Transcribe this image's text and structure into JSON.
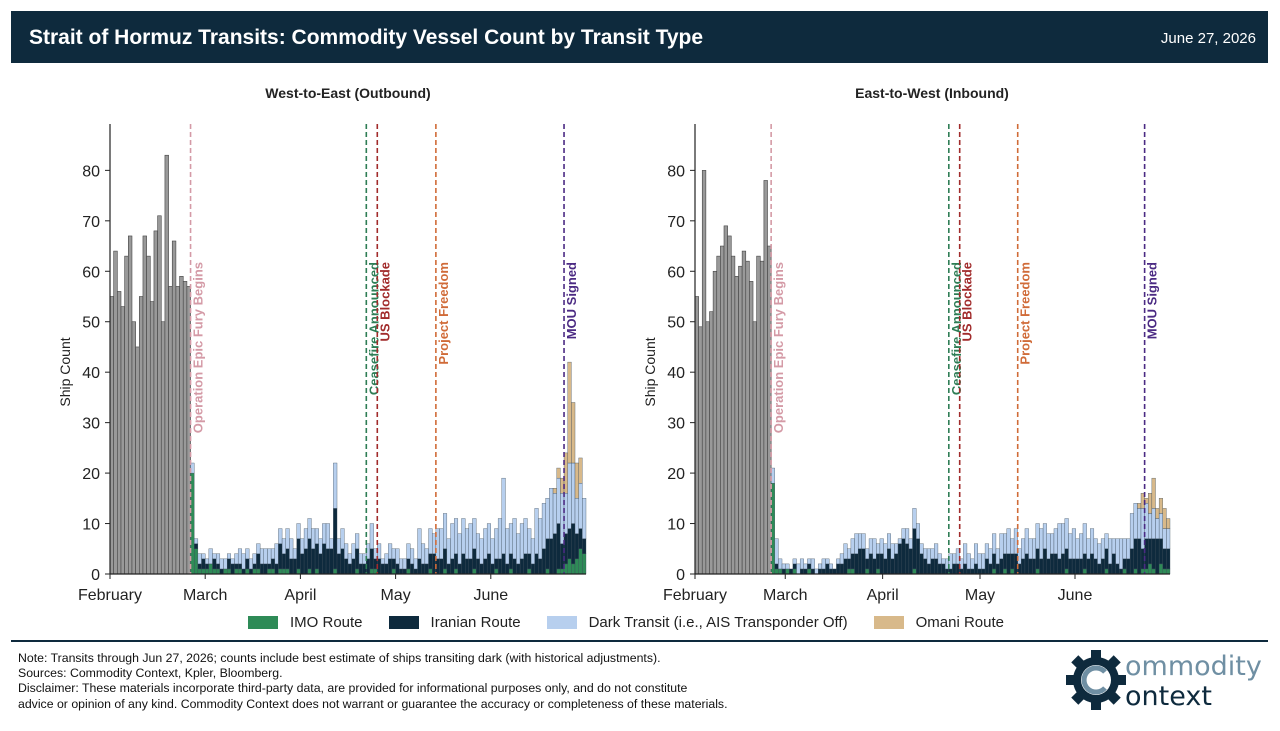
{
  "header": {
    "title": "Strait of Hormuz Transits: Commodity Vessel Count by Transit Type",
    "date": "June 27, 2026"
  },
  "legend": [
    {
      "label": "IMO Route",
      "color": "#2e8b57"
    },
    {
      "label": "Iranian Route",
      "color": "#0e2a3d"
    },
    {
      "label": "Dark Transit (i.e., AIS Transponder Off)",
      "color": "#b7cfee"
    },
    {
      "label": "Omani Route",
      "color": "#d8b98a"
    }
  ],
  "footer": {
    "note": "Note: Transits through Jun 27, 2026; counts include best estimate of ships transiting dark (with historical adjustments).",
    "sources": "Sources: Commodity Context, Kpler, Bloomberg.",
    "disclaimer1": "Disclaimer: These materials incorporate third-party data, are provided for informational purposes only, and do not constitute",
    "disclaimer2": "advice or opinion of any kind. Commodity Context does not warrant or guarantee the accuracy or completeness of these materials."
  },
  "logo": {
    "word1": "ommodity",
    "word2": "ontext"
  },
  "chart_data": [
    {
      "type": "bar",
      "title": "West-to-East (Outbound)",
      "ylabel": "Ship Count",
      "ylim": [
        0,
        88
      ],
      "yticks": [
        0,
        10,
        20,
        30,
        40,
        50,
        60,
        70,
        80
      ],
      "x_month_labels": [
        "February",
        "March",
        "April",
        "May",
        "June"
      ],
      "stacked": true,
      "pre_conflict_color": "#999999",
      "pre_conflict_daily": [
        55,
        64,
        56,
        53,
        63,
        67,
        50,
        45,
        55,
        67,
        63,
        54,
        68,
        71,
        50,
        83,
        57,
        66,
        57,
        59,
        58,
        57
      ],
      "conflict_series": {
        "imo": [
          20,
          5,
          1,
          1,
          1,
          2,
          1,
          1,
          0,
          1,
          1,
          0,
          1,
          1,
          0,
          1,
          0,
          1,
          1,
          0,
          0,
          1,
          1,
          0,
          1,
          1,
          1,
          0,
          0,
          1,
          0,
          0,
          1,
          0,
          1,
          0,
          0,
          0,
          0,
          1,
          0,
          0,
          0,
          0,
          0,
          1,
          0,
          0,
          0,
          1,
          1,
          0,
          0,
          0,
          0,
          1,
          0,
          0,
          0,
          1,
          0,
          0,
          0,
          0,
          0,
          1,
          0,
          0,
          0,
          1,
          0,
          0,
          1,
          0,
          0,
          0,
          0,
          1,
          0,
          0,
          0,
          0,
          0,
          1,
          0,
          0,
          0,
          1,
          0,
          0,
          0,
          0,
          1,
          0,
          0,
          0,
          0,
          1,
          0,
          0,
          1,
          1,
          2,
          3,
          2,
          3,
          5,
          4
        ],
        "iranian": [
          0,
          1,
          1,
          2,
          1,
          0,
          2,
          1,
          1,
          0,
          2,
          2,
          1,
          1,
          1,
          2,
          1,
          1,
          3,
          2,
          2,
          1,
          2,
          2,
          5,
          3,
          4,
          3,
          3,
          6,
          4,
          5,
          6,
          5,
          5,
          4,
          6,
          5,
          5,
          12,
          4,
          5,
          3,
          2,
          3,
          4,
          2,
          2,
          3,
          4,
          2,
          3,
          2,
          2,
          3,
          2,
          2,
          1,
          1,
          2,
          2,
          1,
          3,
          2,
          2,
          3,
          4,
          3,
          3,
          4,
          2,
          3,
          3,
          2,
          4,
          3,
          3,
          4,
          3,
          2,
          3,
          4,
          2,
          2,
          3,
          4,
          2,
          3,
          3,
          2,
          3,
          4,
          3,
          2,
          4,
          3,
          5,
          6,
          7,
          8,
          9,
          5,
          6,
          6,
          8,
          5,
          4,
          3
        ],
        "dark": [
          2,
          1,
          2,
          1,
          1,
          3,
          1,
          2,
          2,
          2,
          1,
          1,
          2,
          3,
          3,
          2,
          2,
          2,
          2,
          3,
          3,
          3,
          2,
          4,
          3,
          3,
          4,
          4,
          2,
          3,
          3,
          4,
          4,
          4,
          3,
          3,
          4,
          5,
          2,
          9,
          3,
          4,
          3,
          2,
          3,
          3,
          2,
          2,
          3,
          5,
          2,
          3,
          1,
          2,
          3,
          2,
          3,
          2,
          2,
          3,
          3,
          2,
          6,
          4,
          3,
          5,
          4,
          6,
          6,
          7,
          5,
          7,
          7,
          6,
          7,
          6,
          7,
          6,
          5,
          5,
          6,
          6,
          5,
          6,
          8,
          15,
          7,
          6,
          8,
          6,
          7,
          7,
          5,
          5,
          9,
          8,
          9,
          8,
          10,
          8,
          9,
          10,
          8,
          13,
          12,
          7,
          9,
          8
        ],
        "omani": [
          0,
          0,
          0,
          0,
          0,
          0,
          0,
          0,
          0,
          0,
          0,
          0,
          0,
          0,
          0,
          0,
          0,
          0,
          0,
          0,
          0,
          0,
          0,
          0,
          0,
          0,
          0,
          0,
          0,
          0,
          0,
          0,
          0,
          0,
          0,
          0,
          0,
          0,
          0,
          0,
          0,
          0,
          0,
          0,
          0,
          0,
          0,
          0,
          0,
          0,
          0,
          0,
          0,
          0,
          0,
          0,
          0,
          0,
          0,
          0,
          0,
          0,
          0,
          0,
          0,
          0,
          0,
          0,
          0,
          0,
          0,
          0,
          0,
          0,
          0,
          0,
          0,
          0,
          0,
          0,
          0,
          0,
          0,
          0,
          0,
          0,
          0,
          0,
          0,
          0,
          0,
          0,
          0,
          0,
          0,
          0,
          0,
          0,
          0,
          1,
          2,
          3,
          8,
          20,
          12,
          7,
          5,
          0
        ]
      },
      "events": [
        {
          "label": "Operation Epic Fury Begins",
          "color": "#d49aa6",
          "index": 22
        },
        {
          "label": "Ceasefire Announced",
          "color": "#2e7d55",
          "index": 70
        },
        {
          "label": "US Blockade",
          "color": "#a12b2b",
          "index": 73
        },
        {
          "label": "Project Freedom",
          "color": "#d06b38",
          "index": 89
        },
        {
          "label": "MOU Signed",
          "color": "#4b2a83",
          "index": 124
        }
      ]
    },
    {
      "type": "bar",
      "title": "East-to-West (Inbound)",
      "ylabel": "Ship Count",
      "ylim": [
        0,
        88
      ],
      "yticks": [
        0,
        10,
        20,
        30,
        40,
        50,
        60,
        70,
        80
      ],
      "x_month_labels": [
        "February",
        "March",
        "April",
        "May",
        "June"
      ],
      "stacked": true,
      "pre_conflict_color": "#999999",
      "pre_conflict_daily": [
        55,
        49,
        80,
        50,
        52,
        60,
        63,
        65,
        69,
        67,
        63,
        59,
        61,
        64,
        62,
        58,
        50,
        63,
        62,
        78,
        65
      ],
      "conflict_series": {
        "imo": [
          18,
          1,
          1,
          0,
          1,
          0,
          1,
          0,
          0,
          0,
          1,
          0,
          0,
          0,
          0,
          0,
          0,
          0,
          0,
          0,
          0,
          1,
          1,
          0,
          0,
          0,
          1,
          0,
          0,
          1,
          0,
          0,
          0,
          0,
          0,
          0,
          0,
          0,
          0,
          1,
          0,
          0,
          0,
          0,
          0,
          0,
          0,
          0,
          0,
          0,
          0,
          0,
          0,
          0,
          0,
          0,
          0,
          0,
          0,
          0,
          0,
          1,
          0,
          0,
          1,
          0,
          1,
          0,
          0,
          0,
          0,
          0,
          0,
          1,
          0,
          0,
          0,
          0,
          0,
          0,
          0,
          1,
          0,
          0,
          0,
          0,
          1,
          0,
          0,
          0,
          0,
          0,
          1,
          0,
          0,
          0,
          0,
          1,
          0,
          0,
          1,
          0,
          1,
          1,
          2,
          1,
          0,
          2,
          1,
          1
        ],
        "iranian": [
          0,
          1,
          0,
          1,
          0,
          1,
          1,
          0,
          1,
          1,
          1,
          1,
          0,
          1,
          1,
          2,
          1,
          1,
          2,
          2,
          3,
          2,
          3,
          4,
          5,
          5,
          2,
          4,
          3,
          3,
          4,
          3,
          5,
          3,
          4,
          6,
          7,
          6,
          5,
          8,
          7,
          4,
          3,
          2,
          3,
          3,
          2,
          2,
          1,
          1,
          2,
          2,
          1,
          2,
          1,
          1,
          2,
          1,
          1,
          3,
          2,
          3,
          2,
          3,
          3,
          4,
          3,
          4,
          2,
          3,
          4,
          3,
          3,
          4,
          3,
          5,
          3,
          4,
          4,
          3,
          4,
          4,
          3,
          3,
          3,
          3,
          3,
          3,
          4,
          3,
          2,
          3,
          4,
          2,
          4,
          2,
          1,
          2,
          3,
          5,
          6,
          7,
          4,
          6,
          5,
          6,
          7,
          5,
          4,
          4
        ],
        "dark": [
          3,
          5,
          2,
          1,
          1,
          0,
          1,
          2,
          2,
          1,
          1,
          2,
          1,
          1,
          2,
          1,
          1,
          0,
          1,
          2,
          3,
          2,
          3,
          4,
          3,
          3,
          2,
          3,
          4,
          2,
          3,
          3,
          3,
          3,
          2,
          1,
          2,
          3,
          2,
          4,
          3,
          2,
          2,
          3,
          2,
          3,
          2,
          1,
          2,
          3,
          2,
          3,
          2,
          4,
          3,
          2,
          4,
          3,
          3,
          3,
          3,
          4,
          3,
          5,
          4,
          5,
          3,
          5,
          3,
          4,
          5,
          4,
          4,
          5,
          6,
          5,
          5,
          4,
          5,
          7,
          6,
          6,
          5,
          6,
          4,
          5,
          6,
          4,
          5,
          4,
          4,
          4,
          3,
          5,
          3,
          5,
          6,
          4,
          4,
          7,
          7,
          6,
          8,
          7,
          5,
          6,
          4,
          5,
          4,
          4
        ],
        "omani": [
          0,
          0,
          0,
          0,
          0,
          0,
          0,
          0,
          0,
          0,
          0,
          0,
          0,
          0,
          0,
          0,
          0,
          0,
          0,
          0,
          0,
          0,
          0,
          0,
          0,
          0,
          0,
          0,
          0,
          0,
          0,
          0,
          0,
          0,
          0,
          0,
          0,
          0,
          0,
          0,
          0,
          0,
          0,
          0,
          0,
          0,
          0,
          0,
          0,
          0,
          0,
          0,
          0,
          0,
          0,
          0,
          0,
          0,
          0,
          0,
          0,
          0,
          0,
          0,
          0,
          0,
          0,
          0,
          0,
          0,
          0,
          0,
          0,
          0,
          0,
          0,
          0,
          0,
          0,
          0,
          0,
          0,
          0,
          0,
          0,
          0,
          0,
          0,
          0,
          0,
          0,
          0,
          0,
          0,
          0,
          0,
          0,
          0,
          0,
          0,
          0,
          1,
          3,
          1,
          4,
          6,
          2,
          3,
          4,
          2
        ]
      },
      "events": [
        {
          "label": "Operation Epic Fury Begins",
          "color": "#d49aa6",
          "index": 21
        },
        {
          "label": "Ceasefire Announced",
          "color": "#2e7d55",
          "index": 70
        },
        {
          "label": "US Blockade",
          "color": "#a12b2b",
          "index": 73
        },
        {
          "label": "Project Freedom",
          "color": "#d06b38",
          "index": 89
        },
        {
          "label": "MOU Signed",
          "color": "#4b2a83",
          "index": 124
        }
      ]
    }
  ]
}
